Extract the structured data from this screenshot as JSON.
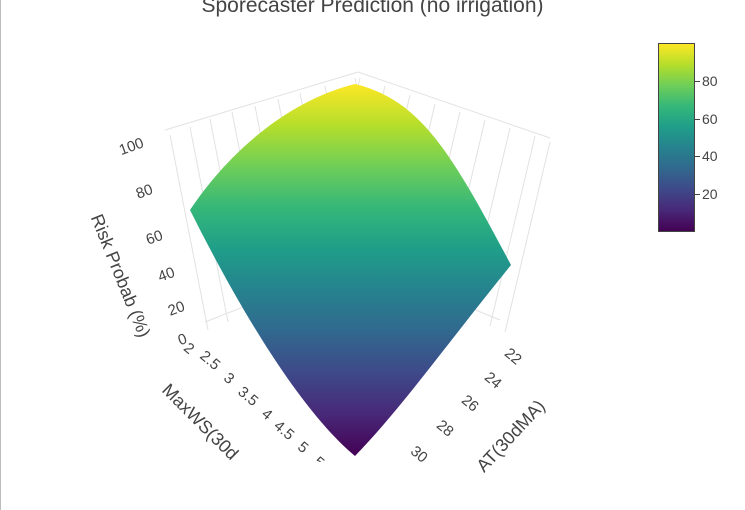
{
  "chart_data": {
    "type": "surface",
    "title": "Sporecaster Prediction (no irrigation)",
    "z_axis": {
      "label": "Risk Probab (%)",
      "ticks": [
        "0",
        "20",
        "40",
        "60",
        "80",
        "100"
      ],
      "range": [
        0,
        100
      ]
    },
    "x_axis": {
      "label": "MaxWS(30d",
      "ticks": [
        "2",
        "2.5",
        "3",
        "3.5",
        "4",
        "4.5",
        "5",
        "5"
      ],
      "range": [
        2,
        5.5
      ]
    },
    "y_axis": {
      "label": "AT(30dMA)",
      "ticks": [
        "22",
        "24",
        "26",
        "28",
        "30"
      ],
      "range": [
        21,
        31
      ]
    },
    "surface_corners": {
      "description_values": "risk probability at the four corners of the surface",
      "low_ws_low_at": 98,
      "low_ws_high_at": 62,
      "high_ws_low_at": 40,
      "high_ws_high_at": 0
    },
    "colorbar": {
      "ticks": [
        "20",
        "40",
        "60",
        "80"
      ],
      "tick_values": [
        20,
        40,
        60,
        80
      ],
      "min": 0,
      "max": 100,
      "colorscale": [
        "#440154",
        "#482878",
        "#3e4989",
        "#31688e",
        "#26828e",
        "#1f9e89",
        "#35b779",
        "#6ece58",
        "#b5de2b",
        "#fde725"
      ]
    }
  }
}
